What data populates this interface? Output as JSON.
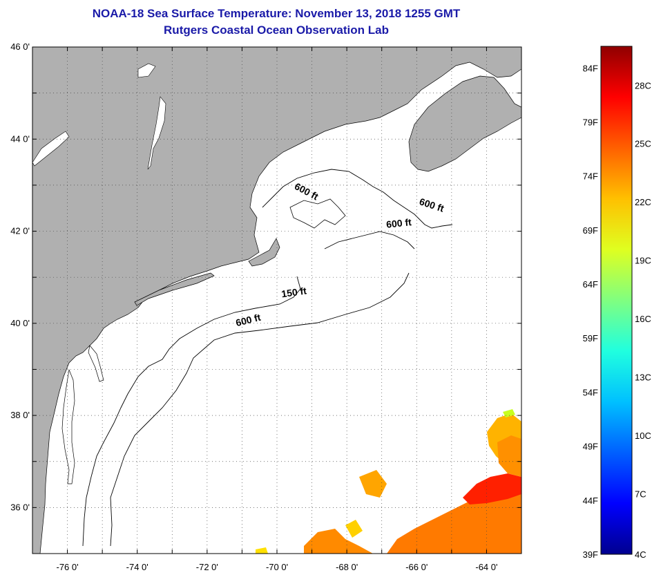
{
  "header": {
    "title": "NOAA-18 Sea Surface Temperature:  November 13, 2018 1255 GMT",
    "subtitle": "Rutgers Coastal Ocean Observation Lab"
  },
  "map": {
    "lon_range": [
      -77,
      -63
    ],
    "lat_range": [
      35,
      46
    ],
    "lat_ticks": [
      "46 0'",
      "44 0'",
      "42 0'",
      "40 0'",
      "38 0'",
      "36 0'"
    ],
    "lon_ticks": [
      "-76 0'",
      "-74 0'",
      "-72 0'",
      "-70 0'",
      "-68 0'",
      "-66 0'",
      "-64 0'"
    ],
    "land_color": "#b0b0b0",
    "ocean_color": "#ffffff",
    "contour_labels": [
      {
        "text": "600 ft",
        "lon": -69.2,
        "lat": 42.8
      },
      {
        "text": "600 ft",
        "lon": -65.6,
        "lat": 42.5
      },
      {
        "text": "600 ft",
        "lon": -66.5,
        "lat": 42.1
      },
      {
        "text": "150 ft",
        "lon": -69.5,
        "lat": 40.6
      },
      {
        "text": "600 ft",
        "lon": -70.8,
        "lat": 40.0
      }
    ]
  },
  "colorbar": {
    "f_labels": [
      "84F",
      "79F",
      "74F",
      "69F",
      "64F",
      "59F",
      "54F",
      "49F",
      "44F",
      "39F"
    ],
    "c_labels": [
      "28C",
      "25C",
      "22C",
      "19C",
      "16C",
      "13C",
      "10C",
      "7C",
      "4C"
    ],
    "colors": [
      "#00008f",
      "#0000ff",
      "#0060ff",
      "#00c0ff",
      "#20ffdf",
      "#80ff80",
      "#dfff20",
      "#ffc000",
      "#ff6000",
      "#ff0000",
      "#8f0000"
    ]
  }
}
